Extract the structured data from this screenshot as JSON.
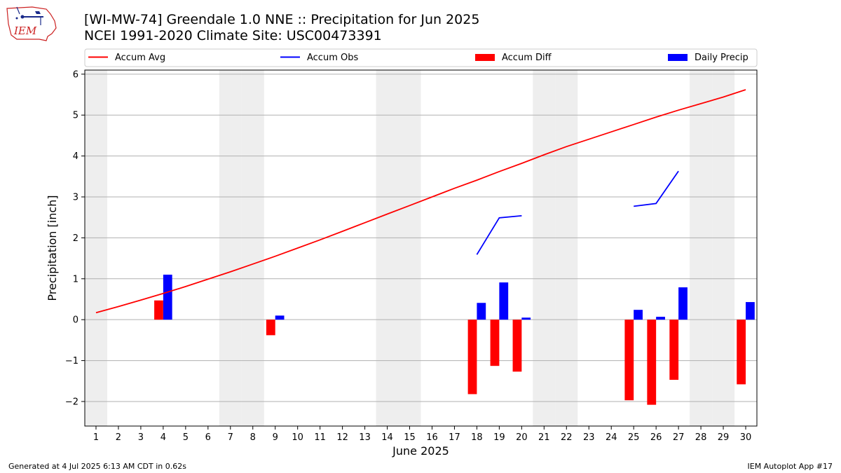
{
  "header": {
    "title_line1": "[WI-MW-74] Greendale 1.0 NNE :: Precipitation for Jun 2025",
    "title_line2": "NCEI 1991-2020 Climate Site: USC00473391",
    "logo_text": "IEM"
  },
  "footer": {
    "generated": "Generated at 4 Jul 2025 6:13 AM CDT in 0.62s",
    "app": "IEM Autoplot App #17"
  },
  "colors": {
    "avg": "#ff0000",
    "obs": "#0000ff",
    "diff": "#ff0000",
    "daily": "#0000ff",
    "weekend_shade": "#eeeeee",
    "grid": "#b0b0b0",
    "logo": "#cc2222"
  },
  "chart_data": {
    "type": "bar",
    "title": "[WI-MW-74] Greendale 1.0 NNE :: Precipitation for Jun 2025",
    "subtitle": "NCEI 1991-2020 Climate Site: USC00473391",
    "xlabel": "June 2025",
    "ylabel": "Precipitation [inch]",
    "xlim": [
      0.5,
      30.5
    ],
    "ylim": [
      -2.6,
      6.1
    ],
    "yticks": [
      -2,
      -1,
      0,
      1,
      2,
      3,
      4,
      5,
      6
    ],
    "ytick_labels": [
      "−2",
      "−1",
      "0",
      "1",
      "2",
      "3",
      "4",
      "5",
      "6"
    ],
    "days": [
      1,
      2,
      3,
      4,
      5,
      6,
      7,
      8,
      9,
      10,
      11,
      12,
      13,
      14,
      15,
      16,
      17,
      18,
      19,
      20,
      21,
      22,
      23,
      24,
      25,
      26,
      27,
      28,
      29,
      30
    ],
    "weekend_days": [
      1,
      7,
      8,
      14,
      15,
      21,
      22,
      28,
      29
    ],
    "grid": "horizontal",
    "legend": {
      "placement": "top, above plot",
      "entries": [
        "Accum Avg",
        "Accum Obs",
        "Accum Diff",
        "Daily Precip"
      ]
    },
    "series": [
      {
        "name": "Accum Avg",
        "kind": "line",
        "values": [
          0.17,
          0.32,
          0.48,
          0.64,
          0.81,
          0.99,
          1.17,
          1.36,
          1.55,
          1.75,
          1.95,
          2.16,
          2.37,
          2.58,
          2.79,
          3.0,
          3.21,
          3.41,
          3.62,
          3.82,
          4.03,
          4.23,
          4.41,
          4.59,
          4.77,
          4.95,
          5.12,
          5.28,
          5.44,
          5.62
        ]
      },
      {
        "name": "Accum Obs",
        "kind": "line",
        "values": [
          null,
          null,
          null,
          null,
          null,
          null,
          null,
          null,
          null,
          null,
          null,
          null,
          null,
          null,
          null,
          null,
          null,
          1.59,
          2.49,
          2.54,
          null,
          null,
          null,
          null,
          2.77,
          2.84,
          3.63,
          null,
          null,
          null
        ]
      },
      {
        "name": "Accum Diff",
        "kind": "bar",
        "values": [
          null,
          null,
          null,
          0.47,
          null,
          null,
          null,
          null,
          -0.38,
          null,
          null,
          null,
          null,
          null,
          null,
          null,
          null,
          -1.82,
          -1.13,
          -1.27,
          null,
          null,
          null,
          null,
          -1.97,
          -2.08,
          -1.47,
          null,
          null,
          -1.58
        ]
      },
      {
        "name": "Daily Precip",
        "kind": "bar",
        "values": [
          null,
          null,
          null,
          1.1,
          null,
          null,
          null,
          null,
          0.1,
          null,
          null,
          null,
          null,
          null,
          null,
          null,
          null,
          0.41,
          0.91,
          0.05,
          null,
          null,
          null,
          null,
          0.24,
          0.07,
          0.79,
          null,
          null,
          0.43
        ]
      }
    ]
  }
}
